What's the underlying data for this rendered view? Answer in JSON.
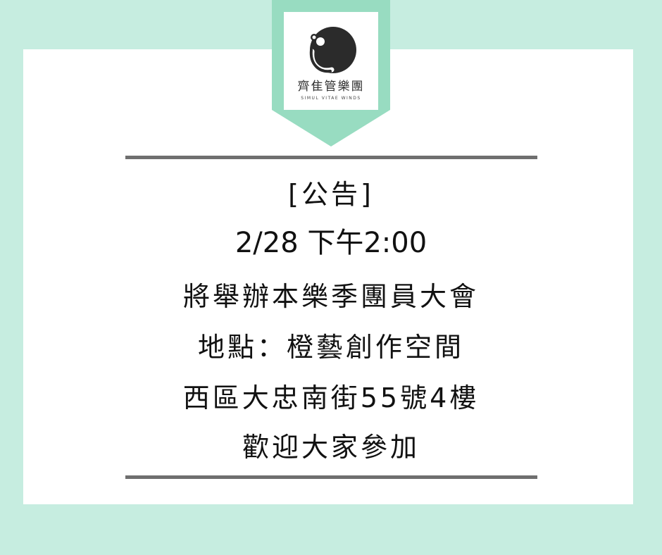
{
  "logo": {
    "name_cn": "齊隹管樂團",
    "name_en": "SIMUL VITAE WINDS"
  },
  "announcement": {
    "heading": "[公告]",
    "datetime": "2/28 下午2:00",
    "event": "將舉辦本樂季團員大會",
    "venue": "地點：橙藝創作空間",
    "address": "西區大忠南街55號4樓",
    "closing": "歡迎大家參加"
  },
  "colors": {
    "background": "#c6ede0",
    "pennant": "#98dcc1",
    "card": "#ffffff",
    "rule": "#6f6f6f",
    "text": "#111111"
  }
}
